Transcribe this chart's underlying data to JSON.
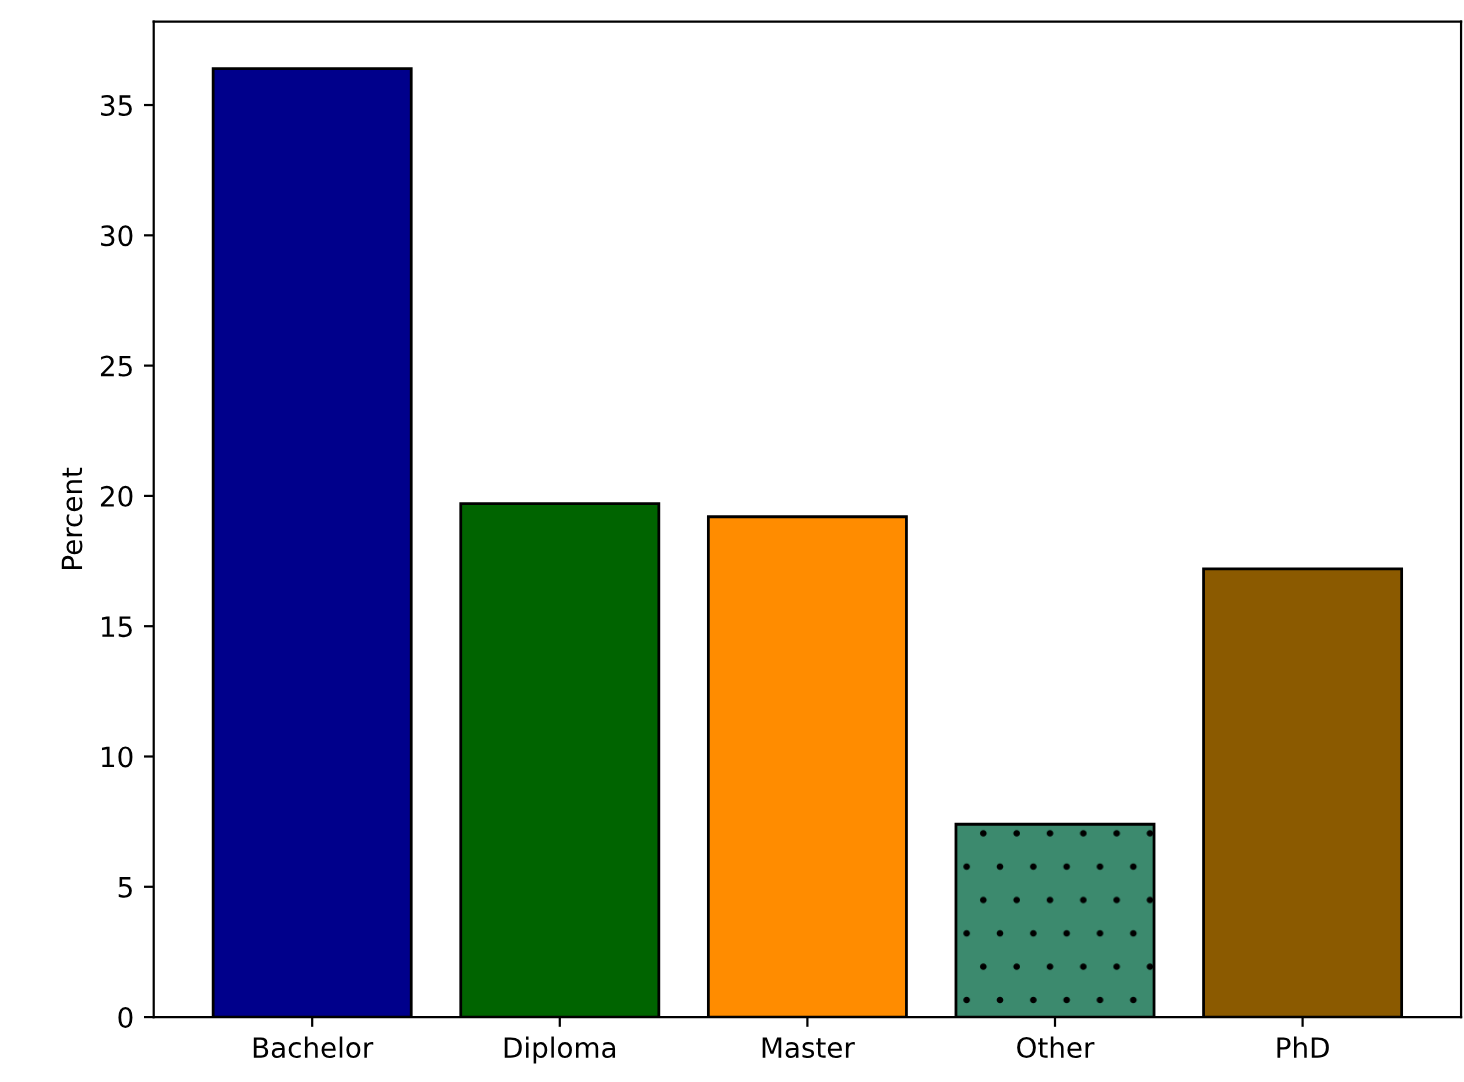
{
  "chart_data": {
    "type": "bar",
    "ylabel": "Percent",
    "categories": [
      "Bachelor",
      "Diploma",
      "Master",
      "Other",
      "PhD"
    ],
    "values": [
      36.4,
      19.7,
      19.2,
      7.4,
      17.2
    ],
    "colors": [
      "#00008b",
      "#006400",
      "#ff8c00",
      "#3c8a6e",
      "#8b5a00"
    ],
    "ylim": [
      0,
      38.2
    ],
    "yticks": [
      0,
      5,
      10,
      15,
      20,
      25,
      30,
      35
    ],
    "grid": false
  }
}
